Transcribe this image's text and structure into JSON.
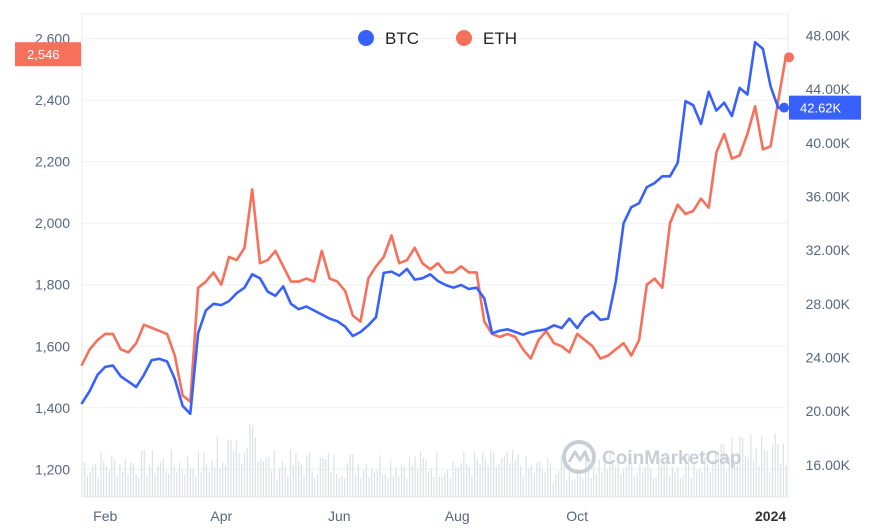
{
  "chart_data": {
    "type": "line",
    "title": "",
    "xlabel": "",
    "ylabel_left": "",
    "ylabel_right": "",
    "x_ticks": [
      "Feb",
      "Apr",
      "Jun",
      "Aug",
      "Oct",
      "2024"
    ],
    "left_axis": {
      "ticks": [
        "1,200",
        "1,400",
        "1,600",
        "1,800",
        "2,000",
        "2,200",
        "2,400",
        "2,600"
      ],
      "tick_values": [
        1200,
        1400,
        1600,
        1800,
        2000,
        2200,
        2400,
        2600
      ],
      "ylim": [
        1110,
        2680
      ]
    },
    "right_axis": {
      "ticks": [
        "16.00K",
        "20.00K",
        "24.00K",
        "28.00K",
        "32.00K",
        "36.00K",
        "40.00K",
        "44.00K",
        "48.00K"
      ],
      "tick_values": [
        16000,
        20000,
        24000,
        28000,
        32000,
        36000,
        40000,
        44000,
        48000
      ],
      "ylim": [
        13600,
        49600
      ]
    },
    "x": [
      1,
      5,
      9,
      13,
      17,
      21,
      25,
      29,
      33,
      37,
      41,
      45,
      49,
      53,
      57,
      61,
      65,
      69,
      73,
      77,
      81,
      85,
      89,
      93,
      97,
      101,
      105,
      109,
      113,
      117,
      121,
      125,
      129,
      133,
      137,
      141,
      145,
      149,
      153,
      157,
      161,
      165,
      169,
      173,
      177,
      181,
      185,
      189,
      193,
      197,
      201,
      205,
      209,
      213,
      217,
      221,
      225,
      229,
      233,
      237,
      241,
      245,
      249,
      253,
      257,
      261,
      265,
      269,
      273,
      277,
      281,
      285,
      289,
      293,
      297,
      301,
      305,
      309,
      313,
      317,
      321,
      325,
      329,
      333,
      337,
      341,
      345,
      349,
      353,
      357,
      361,
      365
    ],
    "series": [
      {
        "name": "BTC",
        "axis": "right",
        "color": "#3861fb",
        "values": [
          20600,
          21500,
          22700,
          23300,
          23400,
          22600,
          22200,
          21800,
          22700,
          23800,
          23900,
          23700,
          22400,
          20400,
          19800,
          25800,
          27500,
          28000,
          27900,
          28200,
          28800,
          29200,
          30200,
          29900,
          28900,
          28600,
          29300,
          28000,
          27600,
          27800,
          27500,
          27200,
          26900,
          26700,
          26300,
          25600,
          25900,
          26400,
          27000,
          30300,
          30400,
          30100,
          30600,
          29800,
          29900,
          30200,
          29700,
          29400,
          29200,
          29400,
          29100,
          29200,
          28400,
          25800,
          26000,
          26100,
          25900,
          25700,
          25900,
          26000,
          26100,
          26400,
          26200,
          26900,
          26200,
          27000,
          27400,
          26800,
          26900,
          29700,
          34000,
          35200,
          35500,
          36700,
          37000,
          37500,
          37500,
          38500,
          43100,
          42800,
          41400,
          43800,
          42400,
          43000,
          42000,
          44100,
          43600,
          47500,
          47000,
          44200,
          42600,
          42620
        ]
      },
      {
        "name": "ETH",
        "axis": "left",
        "color": "#f6705b",
        "values": [
          1540,
          1590,
          1620,
          1640,
          1640,
          1590,
          1580,
          1610,
          1670,
          1660,
          1650,
          1640,
          1570,
          1440,
          1420,
          1790,
          1810,
          1840,
          1800,
          1890,
          1880,
          1920,
          2110,
          1870,
          1880,
          1910,
          1860,
          1810,
          1810,
          1820,
          1810,
          1910,
          1820,
          1810,
          1780,
          1700,
          1680,
          1820,
          1860,
          1890,
          1960,
          1870,
          1880,
          1920,
          1870,
          1850,
          1870,
          1840,
          1840,
          1860,
          1840,
          1840,
          1680,
          1640,
          1630,
          1640,
          1630,
          1590,
          1560,
          1620,
          1650,
          1610,
          1600,
          1580,
          1640,
          1620,
          1600,
          1560,
          1570,
          1590,
          1610,
          1570,
          1620,
          1800,
          1820,
          1790,
          2000,
          2060,
          2030,
          2040,
          2080,
          2050,
          2230,
          2290,
          2210,
          2220,
          2290,
          2380,
          2240,
          2250,
          2400,
          2546
        ]
      }
    ],
    "legend": [
      "BTC",
      "ETH"
    ],
    "legend_position": "top-center",
    "grid": true,
    "volume_bars": true,
    "badges": {
      "btc_last": "42.62K",
      "eth_last": "2,546"
    },
    "watermark": "CoinMarketCap",
    "colors": {
      "btc": "#3861fb",
      "eth": "#f6705b",
      "grid": "#eef0f4",
      "volume": "#dde0e6",
      "text": "#58667e"
    }
  }
}
